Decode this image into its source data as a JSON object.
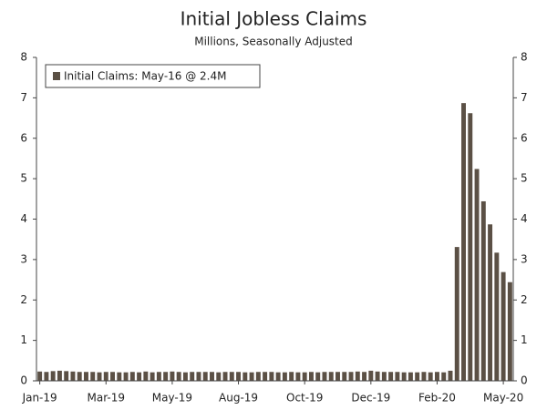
{
  "chart_data": {
    "type": "bar",
    "title": "Initial Jobless Claims",
    "subtitle": "Millions, Seasonally Adjusted",
    "categories": [
      "Jan-19",
      null,
      null,
      null,
      null,
      null,
      null,
      null,
      null,
      null,
      "Mar-19",
      null,
      null,
      null,
      null,
      null,
      null,
      null,
      null,
      null,
      "May-19",
      null,
      null,
      null,
      null,
      null,
      null,
      null,
      null,
      null,
      "Aug-19",
      null,
      null,
      null,
      null,
      null,
      null,
      null,
      null,
      null,
      "Oct-19",
      null,
      null,
      null,
      null,
      null,
      null,
      null,
      null,
      null,
      "Dec-19",
      null,
      null,
      null,
      null,
      null,
      null,
      null,
      null,
      null,
      "Feb-20",
      null,
      null,
      null,
      null,
      null,
      null,
      null,
      null,
      null,
      "May-20",
      null
    ],
    "series": [
      {
        "name": "Initial Claims: May-16 @ 2.4M",
        "color": "#5b5045",
        "values": [
          0.23,
          0.22,
          0.24,
          0.25,
          0.24,
          0.23,
          0.22,
          0.22,
          0.22,
          0.21,
          0.22,
          0.22,
          0.21,
          0.21,
          0.22,
          0.21,
          0.23,
          0.21,
          0.22,
          0.22,
          0.23,
          0.22,
          0.21,
          0.22,
          0.22,
          0.22,
          0.22,
          0.21,
          0.22,
          0.22,
          0.22,
          0.21,
          0.21,
          0.22,
          0.22,
          0.22,
          0.21,
          0.21,
          0.22,
          0.21,
          0.21,
          0.22,
          0.21,
          0.22,
          0.22,
          0.22,
          0.22,
          0.22,
          0.23,
          0.22,
          0.25,
          0.23,
          0.22,
          0.22,
          0.22,
          0.21,
          0.21,
          0.21,
          0.22,
          0.21,
          0.22,
          0.21,
          0.25,
          3.31,
          6.87,
          6.62,
          5.24,
          4.44,
          3.87,
          3.17,
          2.69,
          2.44
        ]
      }
    ],
    "ylim": [
      0,
      8
    ],
    "yticks": [
      0,
      1,
      2,
      3,
      4,
      5,
      6,
      7,
      8
    ],
    "y2lim": [
      0,
      8
    ],
    "y2ticks": [
      0,
      1,
      2,
      3,
      4,
      5,
      6,
      7,
      8
    ],
    "legend": "top-left"
  }
}
